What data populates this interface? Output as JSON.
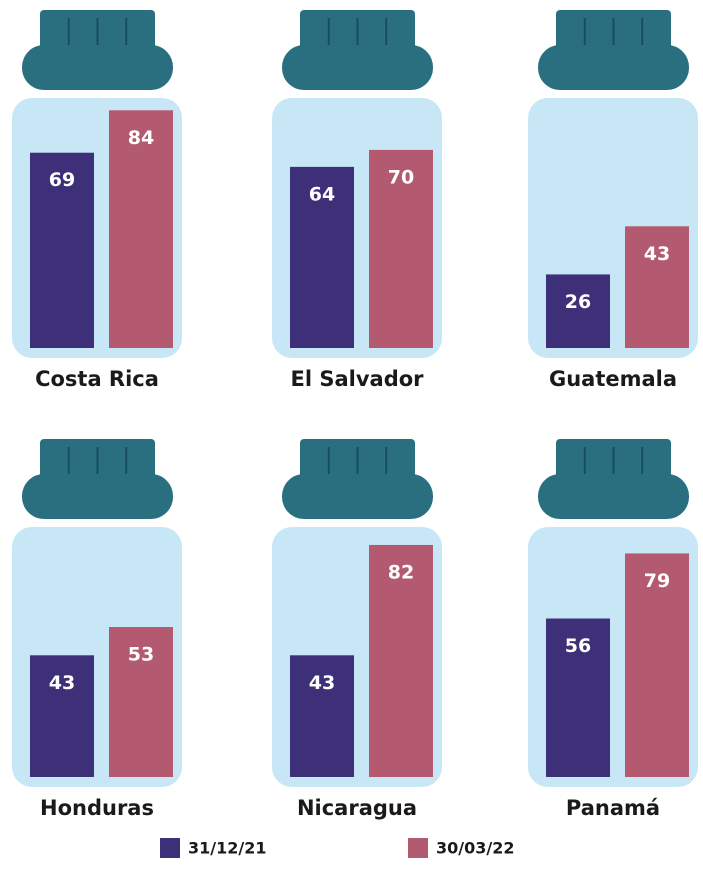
{
  "chart_data": {
    "type": "bar",
    "categories": [
      "Costa Rica",
      "El Salvador",
      "Guatemala",
      "Honduras",
      "Nicaragua",
      "Panamá"
    ],
    "series": [
      {
        "name": "31/12/21",
        "color": "#3d2f78",
        "values": [
          69,
          64,
          26,
          43,
          43,
          56
        ]
      },
      {
        "name": "30/03/22",
        "color": "#b35a70",
        "values": [
          84,
          70,
          43,
          53,
          82,
          79
        ]
      }
    ]
  }
}
